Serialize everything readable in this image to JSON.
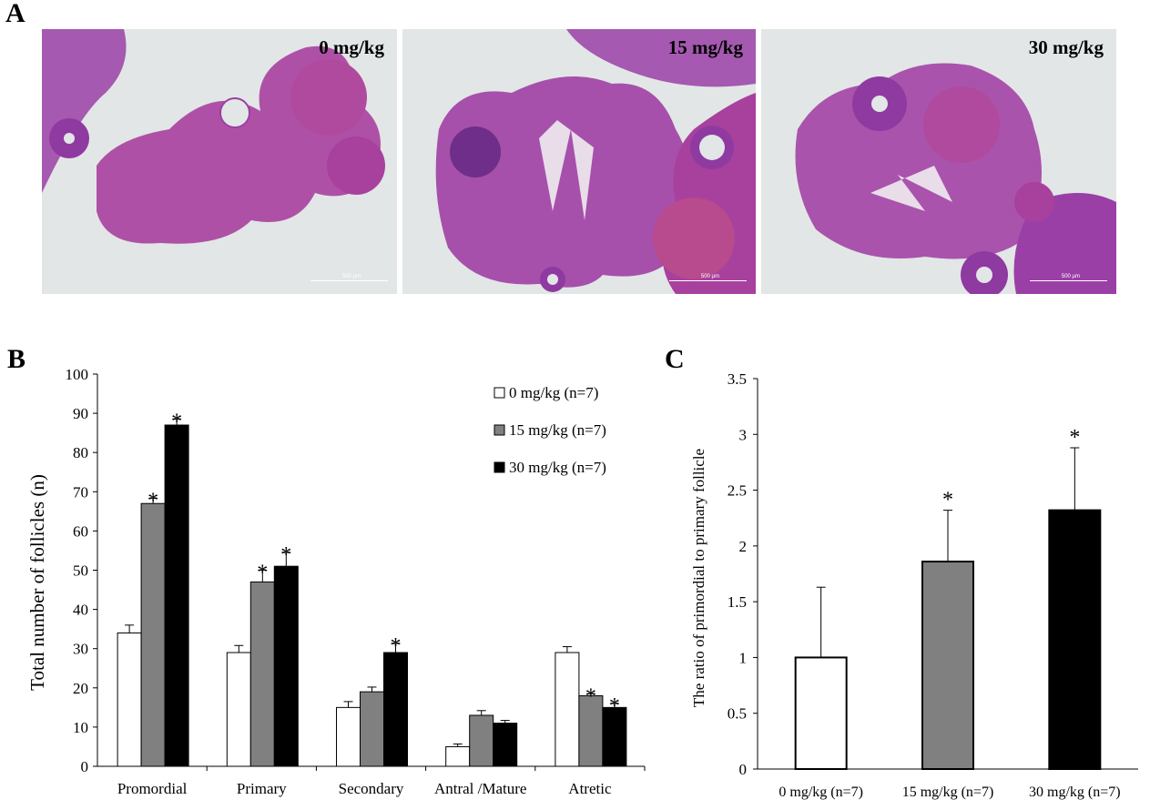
{
  "panel_letters": {
    "a": "A",
    "b": "B",
    "c": "C"
  },
  "micrographs": [
    {
      "label": "0 mg/kg",
      "scale": "500 µm"
    },
    {
      "label": "15  mg/kg",
      "scale": "500 µm"
    },
    {
      "label": "30  mg/kg",
      "scale": "500 µm"
    }
  ],
  "colors": {
    "dose0": "#ffffff",
    "dose15": "#808080",
    "dose30": "#000000",
    "tissue": "#9a3fa6",
    "background": "#e2e6e6"
  },
  "chart_data": [
    {
      "type": "bar",
      "ylabel": "Total number of follicles (n)",
      "categories": [
        "Promordial",
        "Primary",
        "Secondary",
        "Antral /Mature",
        "Atretic"
      ],
      "ylim": [
        0,
        100
      ],
      "yticks": [
        0,
        10,
        20,
        30,
        40,
        50,
        60,
        70,
        80,
        90,
        100
      ],
      "legend_position": "top-right",
      "series": [
        {
          "name": "0 mg/kg (n=7)",
          "values": [
            34,
            29,
            15,
            5,
            29
          ],
          "errors": [
            2,
            1.8,
            1.5,
            0.7,
            1.5
          ],
          "significant": [
            false,
            false,
            false,
            false,
            false
          ]
        },
        {
          "name": "15 mg/kg (n=7)",
          "values": [
            67,
            47,
            19,
            13,
            18
          ],
          "errors": [
            1.3,
            3,
            1.2,
            1.2,
            0.5
          ],
          "significant": [
            true,
            true,
            false,
            false,
            true
          ]
        },
        {
          "name": "30 mg/kg (n=7)",
          "values": [
            87,
            51,
            29,
            11,
            15
          ],
          "errors": [
            1.5,
            3.5,
            2.3,
            0.7,
            1
          ],
          "significant": [
            true,
            true,
            true,
            false,
            true
          ]
        }
      ],
      "significance_marker": "*"
    },
    {
      "type": "bar",
      "ylabel": "The ratio of primordial to primary follicle",
      "categories": [
        "0 mg/kg (n=7)",
        "15 mg/kg (n=7)",
        "30 mg/kg (n=7)"
      ],
      "values": [
        1,
        1.86,
        2.32
      ],
      "errors": [
        0.63,
        0.46,
        0.56
      ],
      "significant": [
        false,
        true,
        true
      ],
      "ylim": [
        0,
        3.5
      ],
      "yticks": [
        "0",
        "0.5",
        "1",
        "1.5",
        "2",
        "2.5",
        "3",
        "3.5"
      ],
      "significance_marker": "*"
    }
  ]
}
